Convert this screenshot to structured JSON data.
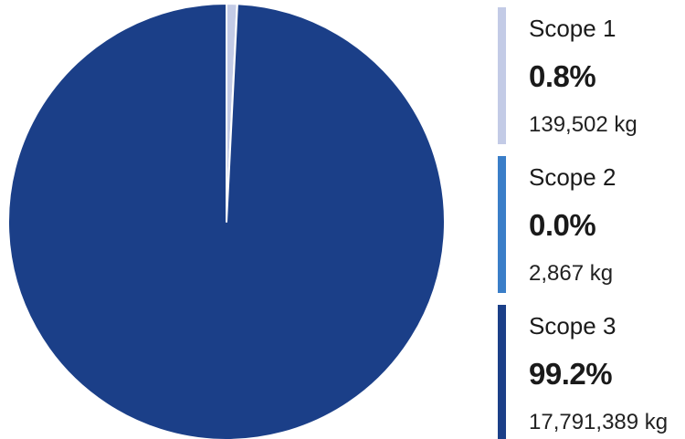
{
  "chart_data": {
    "type": "pie",
    "slices": [
      {
        "label": "Scope 1",
        "percent_label": "0.8%",
        "value_label": "139,502 kg",
        "value": 139502,
        "color": "#c3cbe6"
      },
      {
        "label": "Scope 2",
        "percent_label": "0.0%",
        "value_label": "2,867 kg",
        "value": 2867,
        "color": "#3a7ec8"
      },
      {
        "label": "Scope 3",
        "percent_label": "99.2%",
        "value_label": "17,791,389 kg",
        "value": 17791389,
        "color": "#1b3f88"
      }
    ]
  }
}
